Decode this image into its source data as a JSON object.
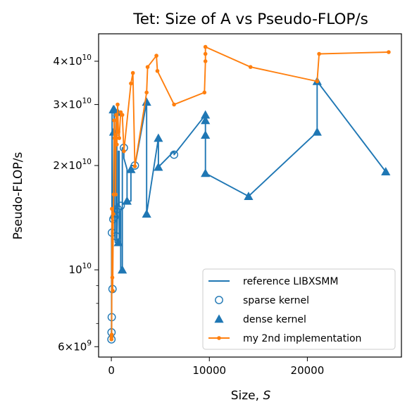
{
  "chart_data": {
    "type": "line",
    "title": "Tet: Size of A vs Pseudo-FLOP/s",
    "xlabel": "Size, ",
    "xlabel_var": "S",
    "ylabel": "Pseudo-FLOP/s",
    "xlim": [
      -1300,
      29600
    ],
    "ylim": [
      5600000000,
      48000000000
    ],
    "yscale": "log",
    "grid": false,
    "legend_position": "lower-right",
    "xticks": [
      {
        "value": 0,
        "label": "0"
      },
      {
        "value": 10000,
        "label": "10000"
      },
      {
        "value": 20000,
        "label": "20000"
      }
    ],
    "yticks": [
      {
        "value": 6000000000,
        "base": "6",
        "exp": "9"
      },
      {
        "value": 10000000000,
        "base": "",
        "exp": "10"
      },
      {
        "value": 20000000000,
        "base": "2",
        "exp": "10"
      },
      {
        "value": 30000000000,
        "base": "3",
        "exp": "10"
      },
      {
        "value": 40000000000,
        "base": "4",
        "exp": "10"
      }
    ],
    "tick_prefix_times": "×",
    "tick_base_ten": "10",
    "yminor": [
      7000000000,
      8000000000,
      9000000000
    ],
    "series": [
      {
        "name": "reference LIBXSMM",
        "color": "#1f77b4",
        "style": "line",
        "x": [
          10,
          10,
          20,
          20,
          40,
          40,
          60,
          60,
          80,
          80,
          120,
          120,
          160,
          160,
          200,
          200,
          240,
          240,
          280,
          280,
          320,
          320,
          360,
          360,
          400,
          400,
          480,
          480,
          560,
          560,
          640,
          640,
          720,
          720,
          800,
          800,
          960,
          960,
          1120,
          1120,
          1280,
          1280,
          1600,
          1600,
          2000,
          2000,
          2400,
          2400,
          3600,
          3600,
          4800,
          4800,
          6400,
          6400,
          9600,
          9600,
          9600,
          14000,
          21000,
          21000,
          28000
        ],
        "y": [
          6300000000,
          6600000000,
          7300000000,
          12800000000,
          13200000000,
          8800000000,
          14000000000,
          14600000000,
          29000000000,
          25000000000,
          14200000000,
          14600000000,
          14100000000,
          15000000000,
          14700000000,
          14900000000,
          15100000000,
          14200000000,
          14800000000,
          29000000000,
          25000000000,
          15300000000,
          15000000000,
          12500000000,
          12000000000,
          15000000000,
          15000000000,
          28000000000,
          28500000000,
          12000000000,
          15000000000,
          15200000000,
          15300000000,
          22000000000,
          22000000000,
          12000000000,
          15000000000,
          10000000000,
          10100000000,
          22500000000,
          22500000000,
          21000000000,
          19500000000,
          15800000000,
          15800000000,
          20000000000,
          20000000000,
          19900000000,
          30500000000,
          14500000000,
          24000000000,
          19800000000,
          22000000000,
          21500000000,
          28000000000,
          24500000000,
          19000000000,
          16300000000,
          25000000000,
          35000000000,
          19200000000
        ]
      },
      {
        "name": "sparse kernel",
        "color": "#1f77b4",
        "style": "open-circle",
        "x": [
          10,
          20,
          40,
          60,
          120,
          200,
          320,
          480,
          640,
          960,
          1280,
          2400,
          6400
        ],
        "y": [
          6300000000,
          6600000000,
          7300000000,
          12800000000,
          8800000000,
          14000000000,
          14200000000,
          12500000000,
          15000000000,
          15300000000,
          22500000000,
          20000000000,
          21500000000
        ]
      },
      {
        "name": "dense kernel",
        "color": "#1f77b4",
        "style": "filled-triangle",
        "x": [
          200,
          240,
          280,
          640,
          720,
          1120,
          1600,
          2000,
          3600,
          3600,
          4800,
          4800,
          9600,
          9600,
          9600,
          9600,
          14000,
          21000,
          21000,
          28000
        ],
        "y": [
          29000000000,
          25000000000,
          29000000000,
          28500000000,
          12000000000,
          10000000000,
          15800000000,
          19500000000,
          30500000000,
          14500000000,
          24000000000,
          19800000000,
          28000000000,
          27000000000,
          24500000000,
          19000000000,
          16300000000,
          25000000000,
          35000000000,
          19200000000
        ]
      },
      {
        "name": "my 2nd implementation",
        "color": "#ff7f0e",
        "style": "line-dot",
        "x": [
          10,
          20,
          40,
          60,
          100,
          140,
          200,
          240,
          280,
          320,
          400,
          440,
          480,
          560,
          640,
          720,
          800,
          960,
          1120,
          1280,
          2000,
          2200,
          2400,
          3600,
          3700,
          4600,
          4700,
          6400,
          9500,
          9600,
          9600,
          9600,
          14200,
          21000,
          21200,
          28300
        ],
        "y": [
          6300000000,
          6400000000,
          6500000000,
          15000000000,
          9500000000,
          8700000000,
          14500000000,
          16500000000,
          27000000000,
          24000000000,
          24500000000,
          16500000000,
          28000000000,
          23000000000,
          30000000000,
          25000000000,
          24000000000,
          28500000000,
          28000000000,
          22000000000,
          34500000000,
          37000000000,
          19900000000,
          32500000000,
          38500000000,
          41500000000,
          37500000000,
          30000000000,
          32500000000,
          40000000000,
          42000000000,
          44000000000,
          38500000000,
          35000000000,
          42000000000,
          42500000000
        ]
      }
    ]
  }
}
